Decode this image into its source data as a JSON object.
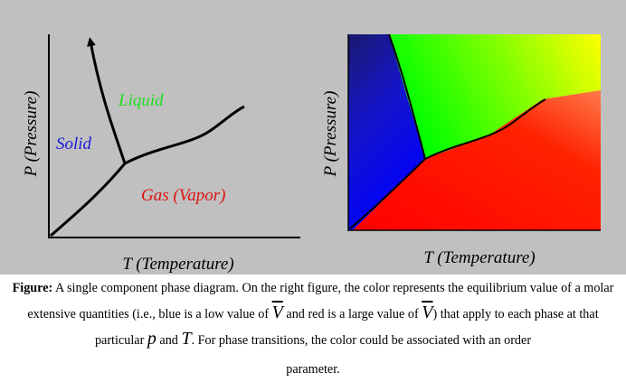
{
  "left_diagram": {
    "y_axis_label": "P (Pressure)",
    "x_axis_label": "T (Temperature)",
    "region_solid": "Solid",
    "region_liquid": "Liquid",
    "region_gas": "Gas (Vapor)",
    "colors": {
      "solid": "#1a1adc",
      "liquid": "#22dd22",
      "gas": "#dd1111"
    }
  },
  "right_diagram": {
    "y_axis_label": "P (Pressure)",
    "x_axis_label": "T (Temperature)",
    "colors": {
      "solid_dark": "#1a1a6e",
      "solid_light": "#0000ff",
      "liquid_left": "#00ff00",
      "liquid_right": "#ffff00",
      "gas": "#ff0000"
    }
  },
  "caption": {
    "label": "Figure:",
    "t1": " A single component phase diagram. On the right figure, the color represents the equilibrium value of a molar extensive quantities (i.e., blue is a low value of ",
    "sym_v": "V",
    "t2": " and red is a large value of ",
    "t3": ") that apply to each phase at that particular ",
    "sym_p": "p",
    "t4": " and ",
    "sym_t": "T",
    "t5": ". For phase transitions, the color could be associated with an order",
    "t6": "parameter."
  }
}
